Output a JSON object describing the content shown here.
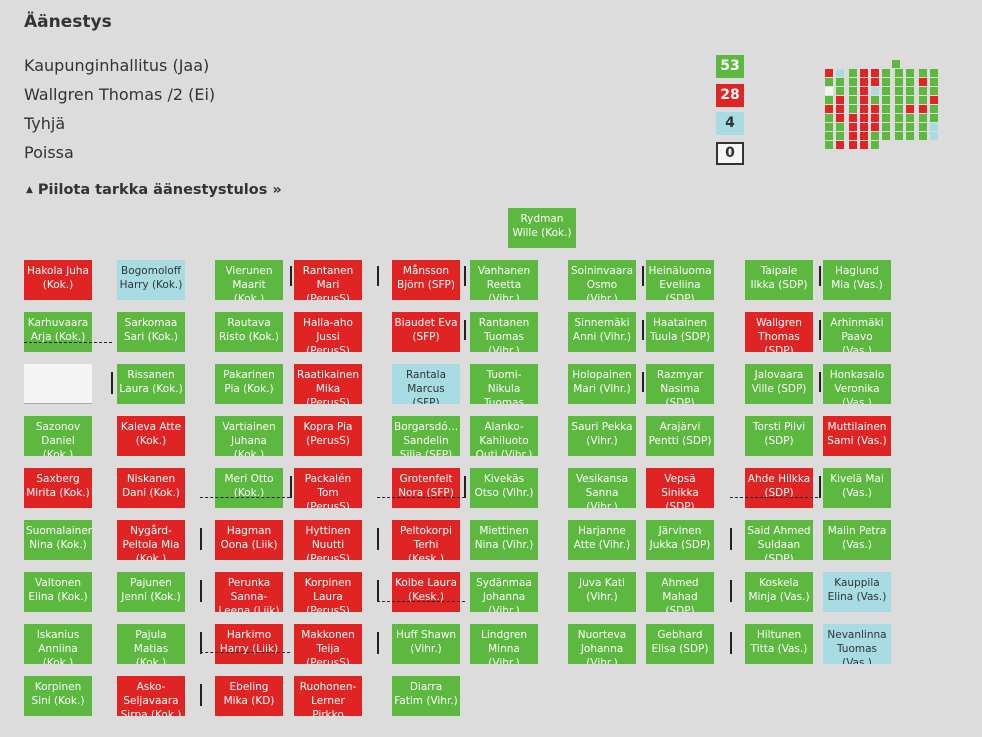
{
  "title": "Äänestys",
  "colors": {
    "jaa": "#5cb83e",
    "ei": "#e02424",
    "tyhja": "#a8dce3",
    "poissa": "#f4f4f4"
  },
  "results": [
    {
      "label": "Kaupunginhallitus (Jaa)",
      "count": "53",
      "type": "jaa"
    },
    {
      "label": "Wallgren Thomas /2 (Ei)",
      "count": "28",
      "type": "ei"
    },
    {
      "label": "Tyhjä",
      "count": "4",
      "type": "tyhja"
    },
    {
      "label": "Poissa",
      "count": "0",
      "type": "poissa"
    }
  ],
  "toggle": {
    "label": "Piilota tarkka äänestystulos »",
    "icon": "triangle-up-icon"
  },
  "chair": {
    "name": "Rydman Wille (Kok.)",
    "vote": "jaa"
  },
  "seat_columns": [
    [
      {
        "name": "Hakola Juha (Kok.)",
        "vote": "ei"
      },
      {
        "name": "Karhuvaara Arja (Kok.)",
        "vote": "jaa"
      },
      {
        "name": "",
        "vote": "poissa"
      },
      {
        "name": "Sazonov Daniel (Kok.)",
        "vote": "jaa"
      },
      {
        "name": "Saxberg Mirita (Kok.)",
        "vote": "ei"
      },
      {
        "name": "Suomalainen Nina (Kok.)",
        "vote": "jaa"
      },
      {
        "name": "Valtonen Elina (Kok.)",
        "vote": "jaa"
      },
      {
        "name": "Iskanius Anniina (Kok.)",
        "vote": "jaa"
      },
      {
        "name": "Korpinen Sini (Kok.)",
        "vote": "jaa"
      }
    ],
    [
      {
        "name": "Bogomoloff Harry (Kok.)",
        "vote": "tyhja"
      },
      {
        "name": "Sarkomaa Sari (Kok.)",
        "vote": "jaa"
      },
      {
        "name": "Rissanen Laura (Kok.)",
        "vote": "jaa"
      },
      {
        "name": "Kaleva Atte (Kok.)",
        "vote": "ei"
      },
      {
        "name": "Niskanen Dani (Kok.)",
        "vote": "ei"
      },
      {
        "name": "Nygård-Peltola Mia (Kok.)",
        "vote": "ei"
      },
      {
        "name": "Pajunen Jenni (Kok.)",
        "vote": "jaa"
      },
      {
        "name": "Pajula Matias (Kok.)",
        "vote": "jaa"
      },
      {
        "name": "Asko-Seljavaara Sirpa (Kok.)",
        "vote": "ei"
      }
    ],
    [
      {
        "name": "Vierunen Maarit (Kok.)",
        "vote": "jaa"
      },
      {
        "name": "Rautava Risto (Kok.)",
        "vote": "jaa"
      },
      {
        "name": "Pakarinen Pia (Kok.)",
        "vote": "jaa"
      },
      {
        "name": "Vartiainen Juhana (Kok.)",
        "vote": "jaa"
      },
      {
        "name": "Meri Otto (Kok.)",
        "vote": "jaa"
      },
      {
        "name": "Hagman Oona (Liik)",
        "vote": "ei"
      },
      {
        "name": "Perunka Sanna-Leena (Liik)",
        "vote": "ei"
      },
      {
        "name": "Harkimo Harry (Liik)",
        "vote": "ei"
      },
      {
        "name": "Ebeling Mika (KD)",
        "vote": "ei"
      }
    ],
    [
      {
        "name": "Rantanen Mari (PerusS)",
        "vote": "ei"
      },
      {
        "name": "Halla-aho Jussi (PerusS)",
        "vote": "ei"
      },
      {
        "name": "Raatikainen Mika (PerusS)",
        "vote": "ei"
      },
      {
        "name": "Kopra Pia (PerusS)",
        "vote": "ei"
      },
      {
        "name": "Packalén Tom (PerusS)",
        "vote": "ei"
      },
      {
        "name": "Hyttinen Nuutti (PerusS)",
        "vote": "ei"
      },
      {
        "name": "Korpinen Laura (PerusS)",
        "vote": "ei"
      },
      {
        "name": "Makkonen Teija (PerusS)",
        "vote": "ei"
      },
      {
        "name": "Ruohonen-Lerner Pirkko",
        "vote": "ei"
      }
    ],
    [
      {
        "name": "Månsson Björn (SFP)",
        "vote": "ei"
      },
      {
        "name": "Biaudet Eva (SFP)",
        "vote": "ei"
      },
      {
        "name": "Rantala Marcus (SFP)",
        "vote": "tyhja"
      },
      {
        "name": "Borgarsdó… Sandelin Silja (SFP)",
        "vote": "jaa"
      },
      {
        "name": "Grotenfelt Nora (SFP)",
        "vote": "ei"
      },
      {
        "name": "Peltokorpi Terhi (Kesk.)",
        "vote": "ei"
      },
      {
        "name": "Kolbe Laura (Kesk.)",
        "vote": "ei"
      },
      {
        "name": "Huff Shawn (Vihr.)",
        "vote": "jaa"
      },
      {
        "name": "Diarra Fatim (Vihr.)",
        "vote": "jaa"
      }
    ],
    [
      {
        "name": "Vanhanen Reetta (Vihr.)",
        "vote": "jaa"
      },
      {
        "name": "Rantanen Tuomas (Vihr.)",
        "vote": "jaa"
      },
      {
        "name": "Tuomi-Nikula Tuomas",
        "vote": "jaa"
      },
      {
        "name": "Alanko-Kahiluoto Outi (Vihr.)",
        "vote": "jaa"
      },
      {
        "name": "Kivekäs Otso (Vihr.)",
        "vote": "jaa"
      },
      {
        "name": "Miettinen Nina (Vihr.)",
        "vote": "jaa"
      },
      {
        "name": "Sydänmaa Johanna (Vihr.)",
        "vote": "jaa"
      },
      {
        "name": "Lindgren Minna (Vihr.)",
        "vote": "jaa"
      }
    ],
    [
      {
        "name": "Soininvaara Osmo (Vihr.)",
        "vote": "jaa"
      },
      {
        "name": "Sinnemäki Anni (Vihr.)",
        "vote": "jaa"
      },
      {
        "name": "Holopainen Mari (Vihr.)",
        "vote": "jaa"
      },
      {
        "name": "Sauri Pekka (Vihr.)",
        "vote": "jaa"
      },
      {
        "name": "Vesikansa Sanna (Vihr.)",
        "vote": "jaa"
      },
      {
        "name": "Harjanne Atte (Vihr.)",
        "vote": "jaa"
      },
      {
        "name": "Juva Kati (Vihr.)",
        "vote": "jaa"
      },
      {
        "name": "Nuorteva Johanna (Vihr.)",
        "vote": "jaa"
      }
    ],
    [
      {
        "name": "Heinäluoma Eveliina (SDP)",
        "vote": "jaa"
      },
      {
        "name": "Haatainen Tuula (SDP)",
        "vote": "jaa"
      },
      {
        "name": "Razmyar Nasima (SDP)",
        "vote": "jaa"
      },
      {
        "name": "Arajärvi Pentti (SDP)",
        "vote": "jaa"
      },
      {
        "name": "Vepsä Sinikka (SDP)",
        "vote": "ei"
      },
      {
        "name": "Järvinen Jukka (SDP)",
        "vote": "jaa"
      },
      {
        "name": "Ahmed Mahad (SDP)",
        "vote": "jaa"
      },
      {
        "name": "Gebhard Elisa (SDP)",
        "vote": "jaa"
      }
    ],
    [
      {
        "name": "Taipale Ilkka (SDP)",
        "vote": "jaa"
      },
      {
        "name": "Wallgren Thomas (SDP)",
        "vote": "ei"
      },
      {
        "name": "Jalovaara Ville (SDP)",
        "vote": "jaa"
      },
      {
        "name": "Torsti Pilvi (SDP)",
        "vote": "jaa"
      },
      {
        "name": "Ahde Hilkka (SDP)",
        "vote": "ei"
      },
      {
        "name": "Said Ahmed Suldaan (SDP)",
        "vote": "jaa"
      },
      {
        "name": "Koskela Minja (Vas.)",
        "vote": "jaa"
      },
      {
        "name": "Hiltunen Titta (Vas.)",
        "vote": "jaa"
      }
    ],
    [
      {
        "name": "Haglund Mia (Vas.)",
        "vote": "jaa"
      },
      {
        "name": "Arhinmäki Paavo (Vas.)",
        "vote": "jaa"
      },
      {
        "name": "Honkasalo Veronika (Vas.)",
        "vote": "jaa"
      },
      {
        "name": "Muttilainen Sami (Vas.)",
        "vote": "ei"
      },
      {
        "name": "Kivelä Mai (Vas.)",
        "vote": "jaa"
      },
      {
        "name": "Malin Petra (Vas.)",
        "vote": "jaa"
      },
      {
        "name": "Kauppila Elina (Vas.)",
        "vote": "tyhja"
      },
      {
        "name": "Nevanlinna Tuomas (Vas.)",
        "vote": "tyhja"
      }
    ]
  ]
}
